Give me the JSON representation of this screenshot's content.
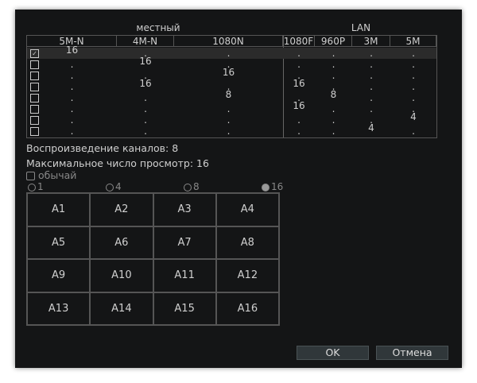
{
  "groups": {
    "local": "местный",
    "lan": "LAN"
  },
  "columns": [
    "5M-N",
    "4M-N",
    "1080N",
    "1080F",
    "960P",
    "3M",
    "5M"
  ],
  "rows": [
    {
      "checked": true,
      "cells": [
        "16",
        ".",
        ".",
        ".",
        ".",
        ".",
        "."
      ]
    },
    {
      "checked": false,
      "cells": [
        ".",
        "16",
        ".",
        ".",
        ".",
        ".",
        "."
      ]
    },
    {
      "checked": false,
      "cells": [
        ".",
        ".",
        "16",
        ".",
        ".",
        ".",
        "."
      ]
    },
    {
      "checked": false,
      "cells": [
        ".",
        "16",
        ".",
        "16",
        ".",
        ".",
        "."
      ]
    },
    {
      "checked": false,
      "cells": [
        ".",
        ".",
        "8",
        ".",
        "8",
        ".",
        "."
      ]
    },
    {
      "checked": false,
      "cells": [
        ".",
        ".",
        ".",
        "16",
        ".",
        ".",
        "."
      ]
    },
    {
      "checked": false,
      "cells": [
        ".",
        ".",
        ".",
        ".",
        ".",
        ".",
        "4"
      ]
    },
    {
      "checked": false,
      "cells": [
        ".",
        ".",
        ".",
        ".",
        ".",
        "4",
        "."
      ]
    }
  ],
  "playback": "Воспроизведение каналов: 8",
  "max_view": "Максимальное число просмотр: 16",
  "custom": {
    "label": "обычай",
    "checked": false
  },
  "split_options": [
    {
      "label": "1",
      "selected": false
    },
    {
      "label": "4",
      "selected": false
    },
    {
      "label": "8",
      "selected": false
    },
    {
      "label": "16",
      "selected": true
    }
  ],
  "channels": [
    "A1",
    "A2",
    "A3",
    "A4",
    "A5",
    "A6",
    "A7",
    "A8",
    "A9",
    "A10",
    "A11",
    "A12",
    "A13",
    "A14",
    "A15",
    "A16"
  ],
  "buttons": {
    "ok": "OK",
    "cancel": "Отмена"
  }
}
